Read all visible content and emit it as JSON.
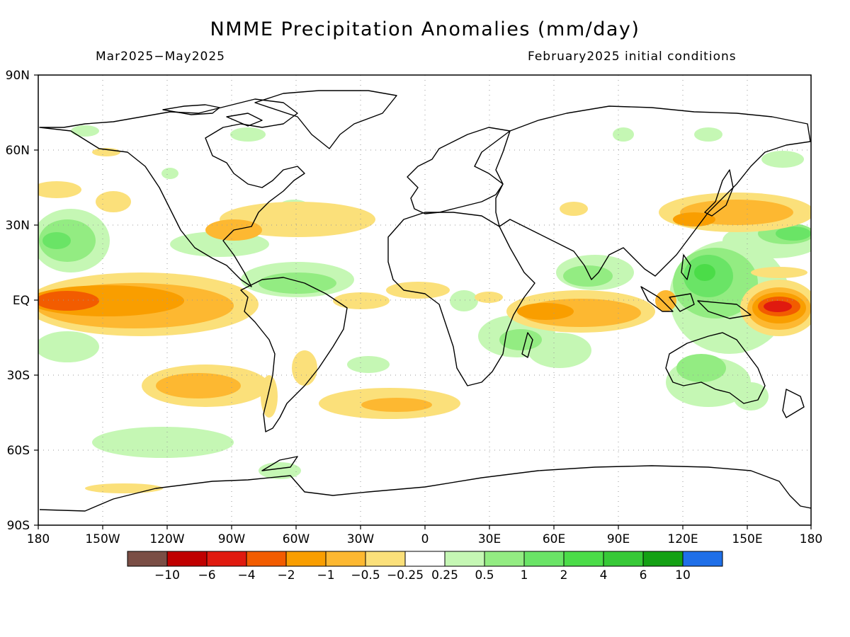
{
  "title": "NMME Precipitation Anomalies (mm/day)",
  "period": "Mar2025−May2025",
  "initial_conditions": "February2025 initial conditions",
  "lat_labels": [
    "90N",
    "60N",
    "30N",
    "EQ",
    "30S",
    "60S",
    "90S"
  ],
  "lon_labels": [
    "180",
    "150W",
    "120W",
    "90W",
    "60W",
    "30W",
    "0",
    "30E",
    "60E",
    "90E",
    "120E",
    "150E",
    "180"
  ],
  "colorbar": {
    "colors": [
      "#7a4e45",
      "#c00000",
      "#e01a0f",
      "#f25c00",
      "#f99e00",
      "#fdb831",
      "#fbe07a",
      "#ffffff",
      "#c5f7b4",
      "#93ec82",
      "#6ae466",
      "#4bdc48",
      "#37c937",
      "#14a114",
      "#1f6fe8"
    ],
    "tick_labels": [
      "−10",
      "−6",
      "−4",
      "−2",
      "−1",
      "−0.5",
      "−0.25",
      "0.25",
      "0.5",
      "1",
      "2",
      "4",
      "6",
      "10"
    ]
  },
  "map_style": {
    "ocean": "#ffffff",
    "coastline": "#000000",
    "gridline": "#999999"
  }
}
